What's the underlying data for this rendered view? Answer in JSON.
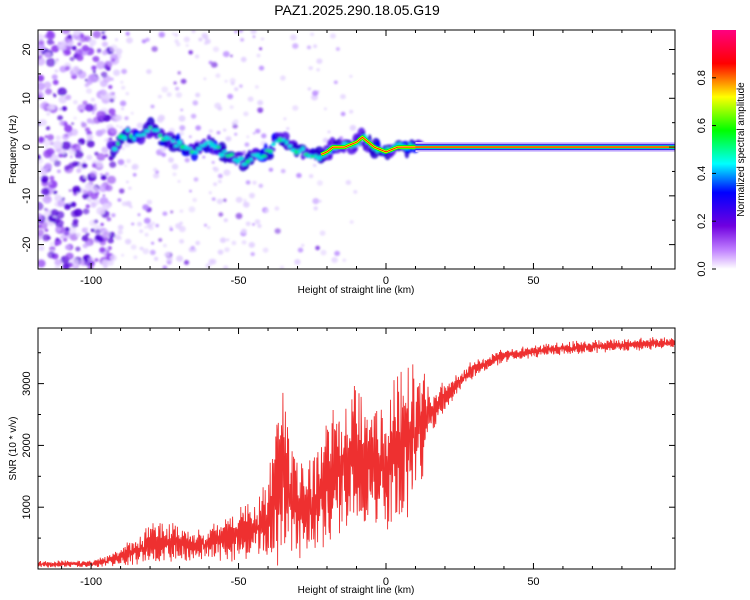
{
  "title": "PAZ1.2025.290.18.05.G19",
  "chart_data": [
    {
      "type": "heatmap",
      "name": "spectrogram",
      "xlabel": "Height of straight line (km)",
      "ylabel": "Frequency (Hz)",
      "xlim": [
        -118,
        98
      ],
      "ylim": [
        -25,
        24
      ],
      "xticks": [
        -100,
        -50,
        0,
        50
      ],
      "yticks": [
        -20,
        -10,
        0,
        10,
        20
      ],
      "xtick_labels": [
        "-100",
        "-50",
        "0",
        "50"
      ],
      "ytick_labels": [
        "-20",
        "-10",
        "0",
        "10",
        "20"
      ],
      "ridge": {
        "x": [
          -92,
          -88,
          -84,
          -80,
          -76,
          -72,
          -68,
          -64,
          -60,
          -56,
          -52,
          -48,
          -44,
          -40,
          -36,
          -32,
          -28,
          -24,
          -20,
          -18,
          -14,
          -10,
          -8,
          -6,
          -4,
          0,
          4,
          8,
          12,
          98
        ],
        "y": [
          0,
          3,
          2,
          4,
          2,
          1,
          0,
          -1,
          1,
          -1,
          -2,
          -3,
          -2,
          -1,
          2,
          0,
          -1,
          -2,
          -1,
          0,
          0,
          1,
          2,
          1,
          0,
          -1,
          0,
          0,
          0,
          0
        ]
      },
      "colorbar": {
        "label": "Normalized spectral amplitude",
        "range": [
          0,
          1
        ],
        "ticks": [
          0.0,
          0.2,
          0.4,
          0.6,
          0.8
        ],
        "tick_labels": [
          "0.0",
          "0.2",
          "0.4",
          "0.6",
          "0.8"
        ],
        "colors": [
          "#ffffff",
          "#c080ff",
          "#7000e0",
          "#0000ff",
          "#00ffff",
          "#00ff00",
          "#ffff00",
          "#ff0000",
          "#ff0080"
        ]
      }
    },
    {
      "type": "line",
      "name": "snr",
      "xlabel": "Height of straight line (km)",
      "ylabel": "SNR (10 * v/v)",
      "xlim": [
        -118,
        98
      ],
      "ylim": [
        0,
        3900
      ],
      "xticks": [
        -100,
        -50,
        0,
        50
      ],
      "yticks": [
        1000,
        2000,
        3000
      ],
      "xtick_labels": [
        "-100",
        "-50",
        "0",
        "50"
      ],
      "ytick_labels": [
        "1000",
        "2000",
        "3000"
      ],
      "color": "#ee3030",
      "envelope": {
        "x": [
          -118,
          -110,
          -100,
          -95,
          -90,
          -85,
          -80,
          -75,
          -70,
          -65,
          -60,
          -55,
          -50,
          -45,
          -40,
          -38,
          -35,
          -32,
          -30,
          -28,
          -25,
          -22,
          -20,
          -18,
          -15,
          -12,
          -10,
          -8,
          -5,
          -2,
          0,
          2,
          5,
          8,
          10,
          12,
          15,
          20,
          25,
          30,
          35,
          40,
          50,
          60,
          70,
          80,
          90,
          98
        ],
        "center": [
          80,
          80,
          80,
          120,
          200,
          300,
          400,
          450,
          420,
          380,
          420,
          460,
          550,
          650,
          800,
          1300,
          1600,
          1200,
          1000,
          900,
          1000,
          1200,
          1400,
          1500,
          1700,
          1800,
          1850,
          1900,
          1800,
          1700,
          1600,
          1900,
          2000,
          2100,
          2200,
          2350,
          2550,
          2800,
          3050,
          3250,
          3350,
          3450,
          3520,
          3570,
          3600,
          3620,
          3650,
          3660
        ],
        "amplitude": [
          60,
          60,
          60,
          100,
          150,
          250,
          350,
          350,
          300,
          250,
          300,
          350,
          450,
          500,
          700,
          1500,
          1500,
          1000,
          900,
          800,
          900,
          1000,
          1100,
          1200,
          1300,
          1300,
          1400,
          1300,
          1100,
          1000,
          1000,
          1200,
          1300,
          1300,
          1200,
          1000,
          500,
          250,
          180,
          150,
          130,
          120,
          110,
          110,
          110,
          110,
          110,
          110
        ]
      }
    }
  ]
}
